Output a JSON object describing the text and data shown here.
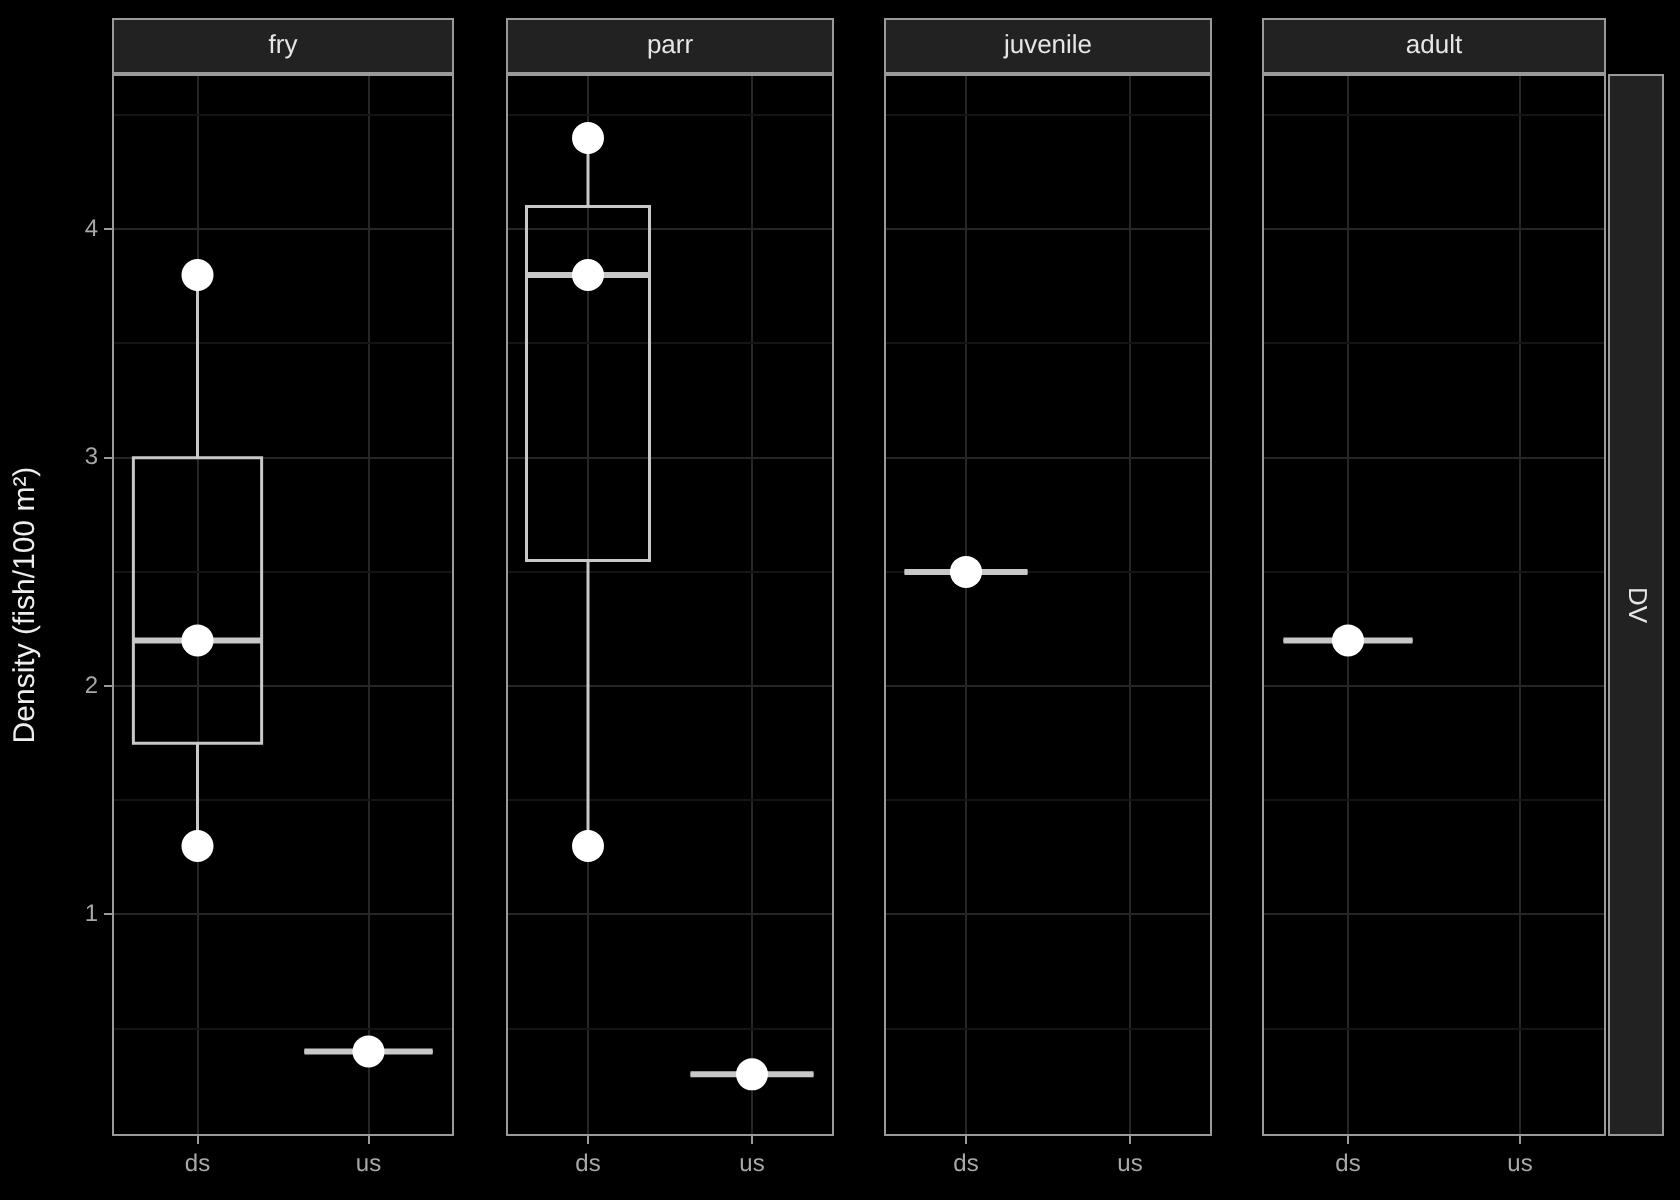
{
  "chart_data": [
    {
      "type": "box",
      "title": "fry",
      "ylabel": "Density (fish/100 m²)",
      "categories": [
        "ds",
        "us"
      ],
      "ylim": [
        0.03,
        4.68
      ],
      "yticks": [
        {
          "value": 0.5,
          "label": null
        },
        1,
        {
          "value": 1.5,
          "label": null
        },
        2,
        {
          "value": 2.5,
          "label": null
        },
        3,
        {
          "value": 3.5,
          "label": null
        },
        4,
        {
          "value": 4.5,
          "label": null
        }
      ],
      "grid": true,
      "marker": "circle",
      "legend": false,
      "series": [
        {
          "type": "box",
          "color": "#c8c8c8",
          "boxes": [
            {
              "low": 1.3,
              "q1": 1.75,
              "median": 2.2,
              "q3": 3.0,
              "high": 3.8
            },
            {
              "low": 0.4,
              "q1": 0.4,
              "median": 0.4,
              "q3": 0.4,
              "high": 0.4
            }
          ]
        },
        {
          "type": "scatter",
          "color": "#ffffff",
          "x": [
            "ds",
            "ds",
            "ds",
            "us"
          ],
          "values": [
            1.3,
            2.2,
            3.8,
            0.4
          ]
        }
      ]
    },
    {
      "type": "box",
      "title": "parr",
      "categories": [
        "ds",
        "us"
      ],
      "ylim": [
        0.03,
        4.68
      ],
      "yticks": [
        {
          "value": 0.5,
          "label": null
        },
        1,
        {
          "value": 1.5,
          "label": null
        },
        2,
        {
          "value": 2.5,
          "label": null
        },
        3,
        {
          "value": 3.5,
          "label": null
        },
        4,
        {
          "value": 4.5,
          "label": null
        }
      ],
      "grid": true,
      "marker": "circle",
      "legend": false,
      "tick_labels": "x",
      "series": [
        {
          "type": "box",
          "color": "#c8c8c8",
          "boxes": [
            {
              "low": 1.3,
              "q1": 2.55,
              "median": 3.8,
              "q3": 4.1,
              "high": 4.4
            },
            {
              "low": 0.3,
              "q1": 0.3,
              "median": 0.3,
              "q3": 0.3,
              "high": 0.3
            }
          ]
        },
        {
          "type": "scatter",
          "color": "#ffffff",
          "x": [
            "ds",
            "ds",
            "ds",
            "us"
          ],
          "values": [
            1.3,
            3.8,
            4.4,
            0.3
          ]
        }
      ]
    },
    {
      "type": "box",
      "title": "juvenile",
      "categories": [
        "ds",
        "us"
      ],
      "ylim": [
        0.03,
        4.68
      ],
      "yticks": [
        {
          "value": 0.5,
          "label": null
        },
        1,
        {
          "value": 1.5,
          "label": null
        },
        2,
        {
          "value": 2.5,
          "label": null
        },
        3,
        {
          "value": 3.5,
          "label": null
        },
        4,
        {
          "value": 4.5,
          "label": null
        }
      ],
      "grid": true,
      "marker": "circle",
      "legend": false,
      "tick_labels": "x",
      "series": [
        {
          "type": "box",
          "color": "#c8c8c8",
          "boxes": [
            {
              "low": 2.5,
              "q1": 2.5,
              "median": 2.5,
              "q3": 2.5,
              "high": 2.5
            },
            null
          ]
        },
        {
          "type": "scatter",
          "color": "#ffffff",
          "x": [
            "ds"
          ],
          "values": [
            2.5
          ]
        }
      ]
    },
    {
      "type": "box",
      "title": "adult",
      "categories": [
        "ds",
        "us"
      ],
      "ylim": [
        0.03,
        4.68
      ],
      "yticks": [
        {
          "value": 0.5,
          "label": null
        },
        1,
        {
          "value": 1.5,
          "label": null
        },
        2,
        {
          "value": 2.5,
          "label": null
        },
        3,
        {
          "value": 3.5,
          "label": null
        },
        4,
        {
          "value": 4.5,
          "label": null
        }
      ],
      "grid": true,
      "marker": "circle",
      "legend": false,
      "tick_labels": "x",
      "annotations": [
        "DV"
      ],
      "series": [
        {
          "type": "box",
          "color": "#c8c8c8",
          "boxes": [
            {
              "low": 2.2,
              "q1": 2.2,
              "median": 2.2,
              "q3": 2.2,
              "high": 2.2
            },
            null
          ]
        },
        {
          "type": "scatter",
          "color": "#ffffff",
          "x": [
            "ds"
          ],
          "values": [
            2.2
          ]
        }
      ]
    }
  ]
}
